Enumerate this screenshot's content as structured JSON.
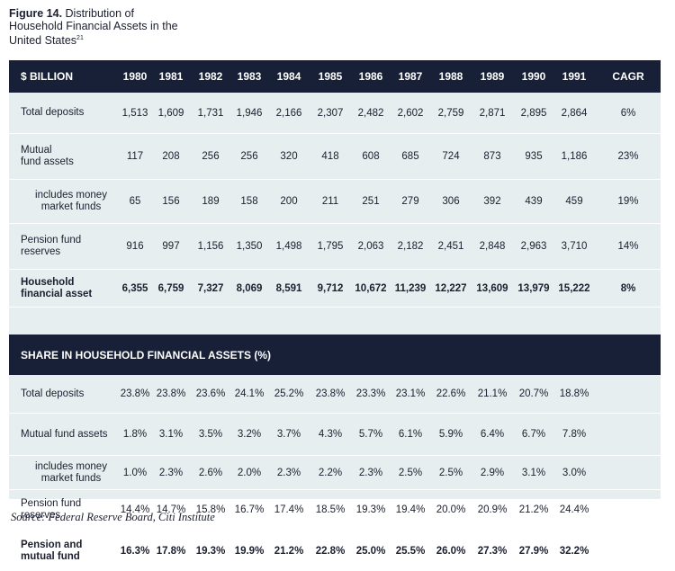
{
  "figure": {
    "label": "Figure 14.",
    "title": "Distribution of Household Financial Assets in the United States",
    "footnote_marker": "21"
  },
  "table1": {
    "header_label": "$ BILLION",
    "columns": [
      "1980",
      "1981",
      "1982",
      "1983",
      "1984",
      "1985",
      "1986",
      "1987",
      "1988",
      "1989",
      "1990",
      "1991",
      "CAGR"
    ],
    "rows": [
      {
        "label": [
          "Total deposits"
        ],
        "indent": false,
        "bold": false,
        "values": [
          "1,513",
          "1,609",
          "1,731",
          "1,946",
          "2,166",
          "2,307",
          "2,482",
          "2,602",
          "2,759",
          "2,871",
          "2,895",
          "2,864",
          "6%"
        ]
      },
      {
        "label": [
          "Mutual",
          "fund assets"
        ],
        "indent": false,
        "bold": false,
        "values": [
          "117",
          "208",
          "256",
          "256",
          "320",
          "418",
          "608",
          "685",
          "724",
          "873",
          "935",
          "1,186",
          "23%"
        ]
      },
      {
        "label": [
          "includes money",
          "market funds"
        ],
        "indent": true,
        "bold": false,
        "values": [
          "65",
          "156",
          "189",
          "158",
          "200",
          "211",
          "251",
          "279",
          "306",
          "392",
          "439",
          "459",
          "19%"
        ]
      },
      {
        "label": [
          "Pension fund",
          "reserves"
        ],
        "indent": false,
        "bold": false,
        "values": [
          "916",
          "997",
          "1,156",
          "1,350",
          "1,498",
          "1,795",
          "2,063",
          "2,182",
          "2,451",
          "2,848",
          "2,963",
          "3,710",
          "14%"
        ]
      },
      {
        "label": [
          "Household",
          "financial asset"
        ],
        "indent": false,
        "bold": true,
        "values": [
          "6,355",
          "6,759",
          "7,327",
          "8,069",
          "8,591",
          "9,712",
          "10,672",
          "11,239",
          "12,227",
          "13,609",
          "13,979",
          "15,222",
          "8%"
        ]
      }
    ]
  },
  "table2": {
    "header_label": "SHARE IN HOUSEHOLD FINANCIAL ASSETS (%)",
    "rows": [
      {
        "label": [
          "Total deposits"
        ],
        "indent": false,
        "bold": false,
        "values": [
          "23.8%",
          "23.8%",
          "23.6%",
          "24.1%",
          "25.2%",
          "23.8%",
          "23.3%",
          "23.1%",
          "22.6%",
          "21.1%",
          "20.7%",
          "18.8%",
          ""
        ]
      },
      {
        "label": [
          "Mutual fund assets"
        ],
        "indent": false,
        "bold": false,
        "values": [
          "1.8%",
          "3.1%",
          "3.5%",
          "3.2%",
          "3.7%",
          "4.3%",
          "5.7%",
          "6.1%",
          "5.9%",
          "6.4%",
          "6.7%",
          "7.8%",
          ""
        ]
      },
      {
        "label": [
          "includes money",
          "market funds"
        ],
        "indent": true,
        "bold": false,
        "values": [
          "1.0%",
          "2.3%",
          "2.6%",
          "2.0%",
          "2.3%",
          "2.2%",
          "2.3%",
          "2.5%",
          "2.5%",
          "2.9%",
          "3.1%",
          "3.0%",
          ""
        ]
      },
      {
        "label": [
          "Pension fund",
          "reserves"
        ],
        "indent": false,
        "bold": false,
        "values": [
          "14.4%",
          "14.7%",
          "15.8%",
          "16.7%",
          "17.4%",
          "18.5%",
          "19.3%",
          "19.4%",
          "20.0%",
          "20.9%",
          "21.2%",
          "24.4%",
          ""
        ]
      },
      {
        "label": [
          "Pension and",
          "mutual fund"
        ],
        "indent": false,
        "bold": true,
        "values": [
          "16.3%",
          "17.8%",
          "19.3%",
          "19.9%",
          "21.2%",
          "22.8%",
          "25.0%",
          "25.5%",
          "26.0%",
          "27.3%",
          "27.9%",
          "32.2%",
          ""
        ]
      }
    ]
  },
  "source": "Source: Federal Reserve Board, Citi Institute"
}
